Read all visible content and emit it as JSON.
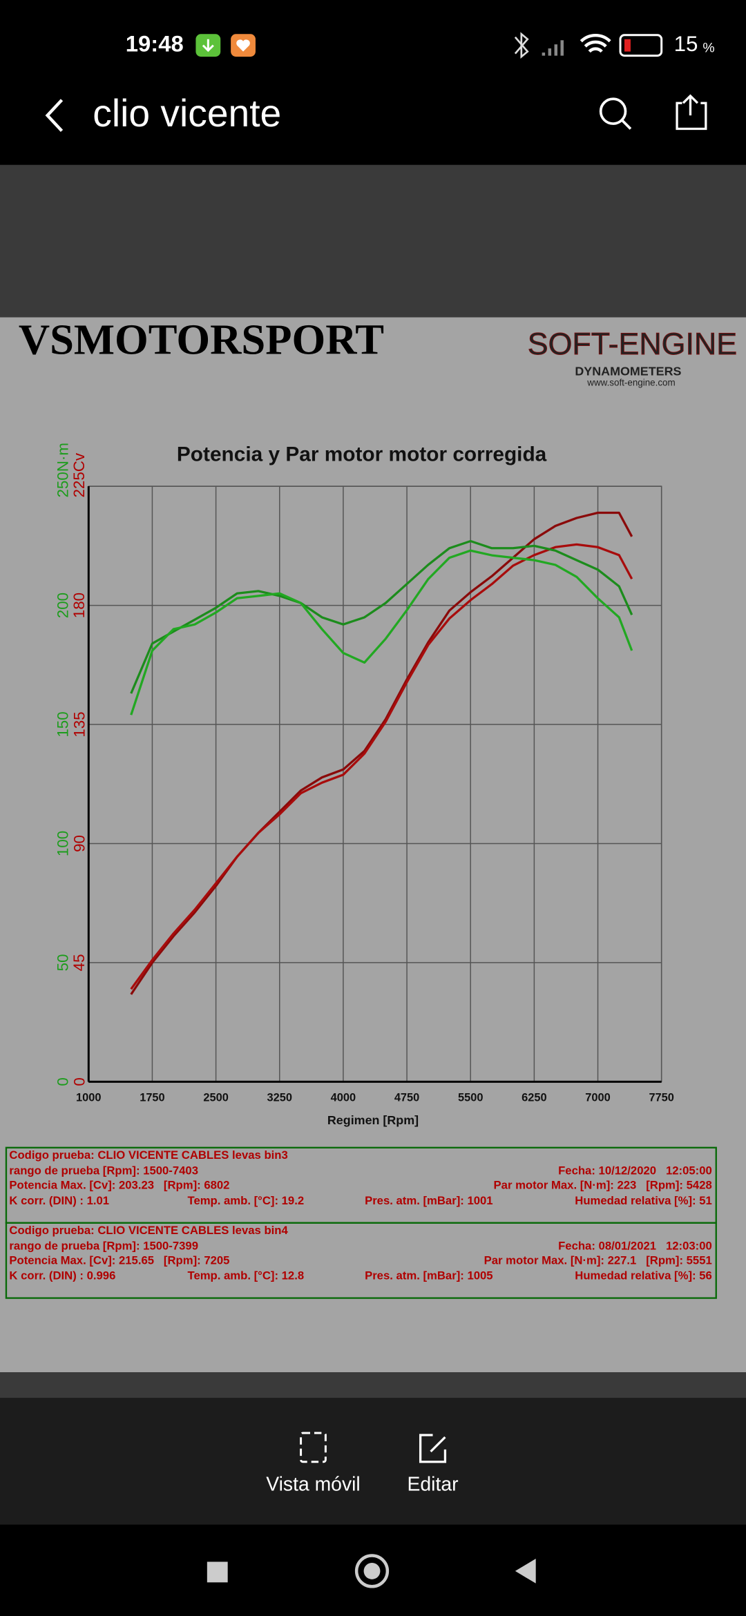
{
  "status_bar": {
    "time": "19:48",
    "battery": "15",
    "battery_unit": "%"
  },
  "toolbar": {
    "title": "clio vicente"
  },
  "document": {
    "company": "VSMOTORSPORT",
    "logo": {
      "brand": "SOFT-ENGINE",
      "tagline": "DYNAMOMETERS",
      "url": "www.soft-engine.com"
    }
  },
  "chart_data": {
    "type": "line",
    "title": "Potencia y Par motor motor corregida",
    "x_label": "Regimen [Rpm]",
    "x": [
      1500,
      1750,
      2000,
      2250,
      2500,
      2750,
      3000,
      3250,
      3500,
      3750,
      4000,
      4250,
      4500,
      4750,
      5000,
      5250,
      5500,
      5750,
      6000,
      6250,
      6500,
      6750,
      7000,
      7250,
      7400
    ],
    "xlim": [
      1000,
      7750
    ],
    "xticks": [
      1000,
      1750,
      2500,
      3250,
      4000,
      4750,
      5500,
      6250,
      7000,
      7750
    ],
    "ylim": [
      0,
      225
    ],
    "yticks": [
      0,
      45,
      90,
      135,
      180,
      {
        "value": 225,
        "label": "225Cv"
      }
    ],
    "y2lim": [
      0,
      250
    ],
    "y2ticks": [
      0,
      50,
      100,
      150,
      200,
      {
        "value": 250,
        "label": "250N·m"
      }
    ],
    "grid": true,
    "series": [
      {
        "color": "#8a0a0a",
        "values": [
          33,
          45,
          55,
          64,
          74,
          85,
          94,
          102,
          110,
          115,
          118,
          125,
          137,
          152,
          166,
          178,
          185,
          191,
          198,
          205,
          210,
          213,
          215,
          215,
          206
        ]
      },
      {
        "color": "#a80c0c",
        "values": [
          35,
          46,
          56,
          65,
          75,
          85,
          94,
          101,
          109,
          113,
          116,
          124,
          136,
          151,
          165,
          175,
          182,
          188,
          195,
          199,
          202,
          203,
          202,
          199,
          190
        ]
      },
      {
        "color": "#1c8c1c",
        "axis": "y2",
        "values": [
          163,
          184,
          189,
          194,
          199,
          205,
          206,
          204,
          201,
          195,
          192,
          195,
          201,
          209,
          217,
          224,
          227,
          224,
          224,
          225,
          223,
          219,
          215,
          208,
          196
        ]
      },
      {
        "color": "#22a822",
        "axis": "y2",
        "values": [
          154,
          181,
          190,
          192,
          197,
          203,
          204,
          205,
          201,
          190,
          180,
          176,
          186,
          198,
          211,
          220,
          223,
          221,
          220,
          219,
          217,
          212,
          203,
          195,
          181
        ]
      }
    ]
  },
  "test_runs": [
    {
      "code": "Codigo prueba: CLIO VICENTE CABLES levas bin3",
      "range": "rango de prueba [Rpm]: 1500-7403",
      "date": "Fecha: 10/12/2020   12:05:00",
      "power": "Potencia Max. [Cv]: 203.23   [Rpm]: 6802",
      "torque": "Par motor Max. [N·m]: 223   [Rpm]: 5428",
      "k": "K corr. (DIN) : 1.01",
      "temp": "Temp. amb. [°C]: 19.2",
      "pres": "Pres. atm. [mBar]: 1001",
      "hum": "Humedad relativa [%]: 51"
    },
    {
      "code": "Codigo prueba: CLIO VICENTE CABLES levas bin4",
      "range": "rango de prueba [Rpm]: 1500-7399",
      "date": "Fecha: 08/01/2021   12:03:00",
      "power": "Potencia Max. [Cv]: 215.65   [Rpm]: 7205",
      "torque": "Par motor Max. [N·m]: 227.1   [Rpm]: 5551",
      "k": "K corr. (DIN) : 0.996",
      "temp": "Temp. amb. [°C]: 12.8",
      "pres": "Pres. atm. [mBar]: 1005",
      "hum": "Humedad relativa [%]: 56"
    }
  ],
  "bottom_bar": {
    "actions": [
      "Vista móvil",
      "Editar"
    ]
  }
}
